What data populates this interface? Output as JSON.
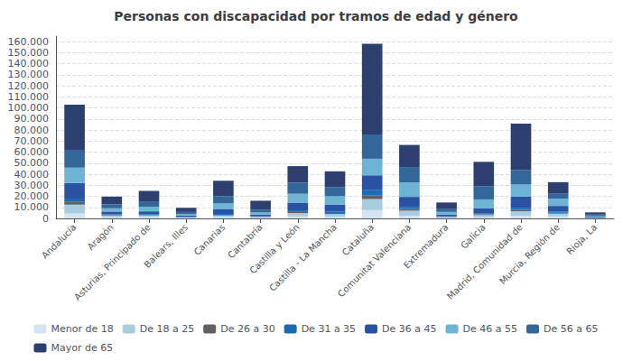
{
  "chart_data": {
    "type": "bar",
    "title": "Personas con discapacidad por tramos de edad y género",
    "categories": [
      "Andalucía",
      "Aragón",
      "Asturias, Principado de",
      "Balears, Illes",
      "Canarias",
      "Cantabria",
      "Castilla y León",
      "Castilla - La Mancha",
      "Cataluña",
      "Comunitat Valenciana",
      "Extremadura",
      "Galicia",
      "Madrid, Comunidad de",
      "Murcia, Región de",
      "Rioja, La"
    ],
    "series": [
      {
        "name": "Menor de 18",
        "color": "#d4e4f2",
        "values": [
          4500,
          1000,
          1200,
          400,
          1200,
          600,
          1800,
          1500,
          7500,
          2500,
          500,
          1000,
          2500,
          1800,
          200
        ]
      },
      {
        "name": "De 18 a 25",
        "color": "#a8cce0",
        "values": [
          8000,
          1500,
          1500,
          600,
          1500,
          700,
          3000,
          2500,
          10000,
          4500,
          700,
          2000,
          4000,
          2500,
          300
        ]
      },
      {
        "name": "De 26 a 30",
        "color": "#606060",
        "values": [
          2500,
          500,
          500,
          250,
          600,
          300,
          1000,
          900,
          3500,
          1500,
          300,
          700,
          1200,
          800,
          150
        ]
      },
      {
        "name": "De 31 a 35",
        "color": "#1a6ab5",
        "values": [
          3000,
          700,
          700,
          350,
          800,
          400,
          1500,
          1200,
          5000,
          2000,
          400,
          1000,
          2000,
          1200,
          200
        ]
      },
      {
        "name": "De 36 a 45",
        "color": "#2952a3",
        "values": [
          14000,
          2500,
          2500,
          1000,
          4500,
          1500,
          7000,
          6500,
          13000,
          9000,
          1500,
          4500,
          10000,
          5000,
          700
        ]
      },
      {
        "name": "De 46 a 55",
        "color": "#6db3d4",
        "values": [
          14000,
          3000,
          4000,
          1200,
          5000,
          2000,
          8000,
          7500,
          15000,
          13000,
          2500,
          8000,
          11000,
          6500,
          900
        ]
      },
      {
        "name": "De 56 a 65",
        "color": "#336699",
        "values": [
          16000,
          3500,
          4500,
          2000,
          6500,
          2500,
          10000,
          8000,
          22000,
          14000,
          3000,
          12000,
          13000,
          5000,
          1000
        ]
      },
      {
        "name": "Mayor de 65",
        "color": "#2d3f6e",
        "values": [
          41000,
          7000,
          10000,
          3800,
          14000,
          8000,
          15000,
          14500,
          82000,
          20000,
          5500,
          22000,
          42000,
          10000,
          2000
        ]
      }
    ],
    "ylim": [
      0,
      165000
    ],
    "yticks": [
      0,
      {
        "value": 10000,
        "label": "10.000"
      },
      {
        "value": 20000,
        "label": "20.000"
      },
      {
        "value": 30000,
        "label": "30.000"
      },
      {
        "value": 40000,
        "label": "40.000"
      },
      {
        "value": 50000,
        "label": "50.000"
      },
      {
        "value": 60000,
        "label": "60.000"
      },
      {
        "value": 70000,
        "label": "70.000"
      },
      {
        "value": 80000,
        "label": "80.000"
      },
      {
        "value": 90000,
        "label": "90.000"
      },
      {
        "value": 100000,
        "label": "100.000"
      },
      {
        "value": 110000,
        "label": "110.000"
      },
      {
        "value": 120000,
        "label": "120.000"
      },
      {
        "value": 130000,
        "label": "130.000"
      },
      {
        "value": 140000,
        "label": "140.000"
      },
      {
        "value": 150000,
        "label": "150.000"
      },
      {
        "value": 160000,
        "label": "160.000"
      }
    ],
    "stacked": true,
    "grid": true,
    "legend": "bottom"
  }
}
